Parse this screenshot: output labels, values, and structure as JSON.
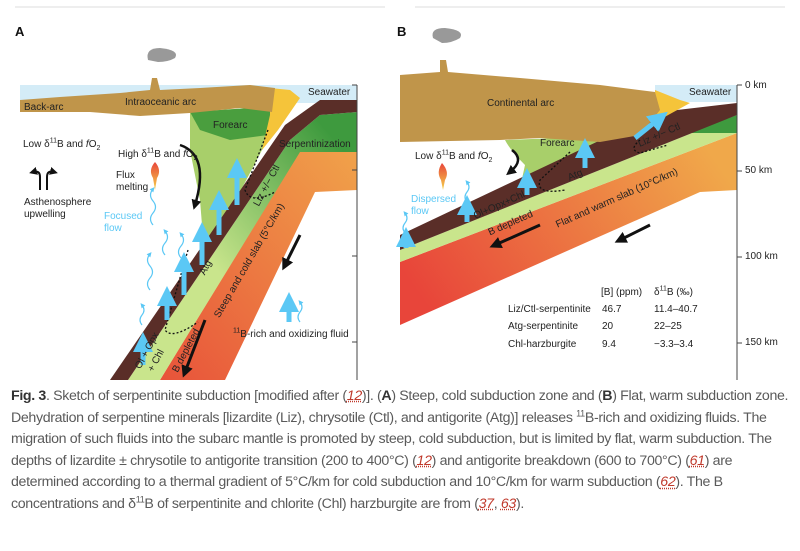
{
  "panel_a": {
    "label": "A",
    "back_arc": "Back-arc",
    "arc": "Intraoceanic arc",
    "seawater": "Seawater",
    "forearc": "Forearc",
    "serpentinization": "Serpentinization",
    "low": {
      "pre": "Low δ",
      "sup": "11",
      "mid": "B and ",
      "it": "f",
      "o": "O",
      "sub": "2"
    },
    "high": {
      "pre": "High δ",
      "sup": "11",
      "mid": "B and ",
      "it": "f",
      "o": "O",
      "sub": "2"
    },
    "flux_1": "Flux",
    "flux_2": "melting",
    "asth_1": "Asthenosphere",
    "asth_2": "upwelling",
    "flow_1": "Focused",
    "flow_2": "flow",
    "liz": "Liz +/− Ctl",
    "atg": "Atg",
    "slab": "Steep and cold slab (5°C/km)",
    "ol": "Ol + Opx",
    "chl": "+ Chl",
    "bdep": "B depleted",
    "fluid": {
      "sup": "11",
      "text": "B-rich and oxidizing fluid"
    }
  },
  "panel_b": {
    "label": "B",
    "arc": "Continental arc",
    "seawater": "Seawater",
    "forearc": "Forearc",
    "low": {
      "pre": "Low δ",
      "sup": "11",
      "mid": "B and ",
      "it": "f",
      "o": "O",
      "sub": "2"
    },
    "flow_1": "Dispersed",
    "flow_2": "flow",
    "liz": "Liz +/− Ctl",
    "atg": "Atg",
    "slab": "Flat and warm slab (10°C/km)",
    "ol": "Ol+Opx+Chl",
    "bdep": "B depleted",
    "depth_ticks": [
      "0 km",
      "50 km",
      "100 km",
      "150 km"
    ],
    "table": {
      "col_b": "[B] (ppm)",
      "col_d": {
        "pre": "δ",
        "sup": "11",
        "post": "B (‰)"
      },
      "rows": [
        {
          "name": "Liz/Ctl-serpentinite",
          "b": "46.7",
          "d": "11.4–40.7"
        },
        {
          "name": "Atg-serpentinite",
          "b": "20",
          "d": "22–25"
        },
        {
          "name": "Chl-harzburgite",
          "b": "9.4",
          "d": "−3.3–3.4"
        }
      ]
    }
  },
  "colors": {
    "arc": "#c0954a",
    "crust": "#5a2e28",
    "serp_dark": "#3e9a3e",
    "serp_light": "#c9e58c",
    "slab_hot": "#e8533a",
    "slab_warm": "#f0a24a",
    "fluid": "#5bc8f5",
    "sea": "#d4ecf7"
  },
  "caption": {
    "fig": "Fig. 3",
    "t1": ". Sketch of serpentinite subduction [modified after (",
    "r1": "12",
    "t2": ")]. (",
    "a": "A",
    "t3": ") Steep, cold subduction zone and (",
    "b": "B",
    "t4": ") Flat, warm subduction zone. Dehydration of serpentine minerals [lizardite (Liz), chrysotile (Ctl), and antigorite (Atg)] releases ",
    "s1": "11",
    "t5": "B-rich and oxidizing fluids. The migration of such fluids into the subarc mantle is promoted by steep, cold subduction, but is limited by flat, warm subduction. The depths of lizardite ± chrysotile to antigorite transition (200 to 400°C) (",
    "r2": "12",
    "t6": ") and antigorite breakdown (600 to 700°C) (",
    "r3": "61",
    "t7": ") are determined according to a thermal gradient of 5°C/km for cold subduction and 10°C/km for warm subduction (",
    "r4": "62",
    "t8": "). The B concentrations and δ",
    "s2": "11",
    "t9": "B of serpentinite and chlorite (Chl) harzburgite are from (",
    "r5": "37",
    "t10": ", ",
    "r6": "63",
    "t11": ")."
  }
}
